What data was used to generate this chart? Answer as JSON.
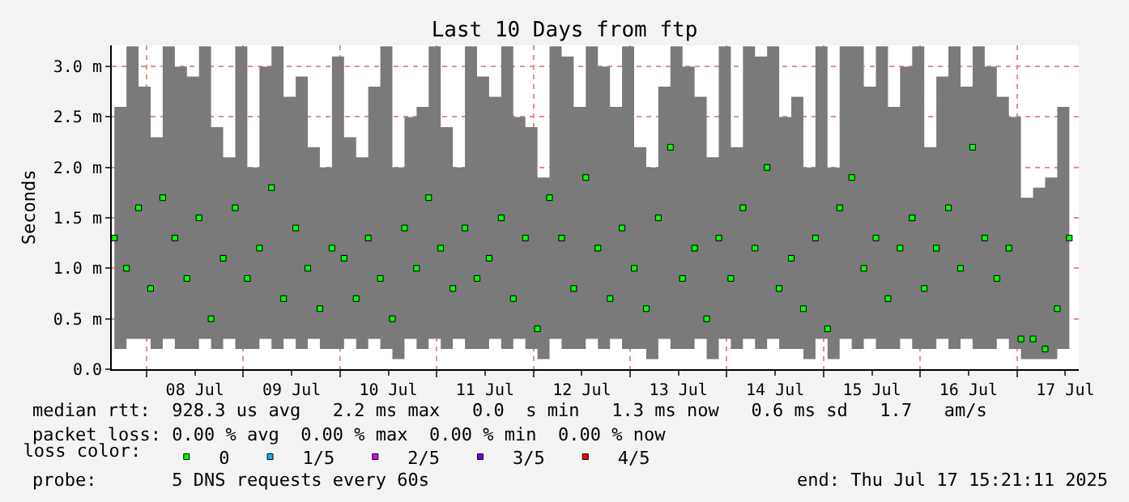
{
  "chart_data": {
    "type": "scatter",
    "title": "Last 10 Days from ftp",
    "ylabel": "Seconds",
    "legend_title": "loss color:",
    "x": [
      "2025-07-07T16:00",
      "2025-07-07T19:00",
      "2025-07-07T22:00",
      "2025-07-08T01:00",
      "2025-07-08T04:00",
      "2025-07-08T07:00",
      "2025-07-08T10:00",
      "2025-07-08T13:00",
      "2025-07-08T16:00",
      "2025-07-08T19:00",
      "2025-07-08T22:00",
      "2025-07-09T01:00",
      "2025-07-09T04:00",
      "2025-07-09T07:00",
      "2025-07-09T10:00",
      "2025-07-09T13:00",
      "2025-07-09T16:00",
      "2025-07-09T19:00",
      "2025-07-09T22:00",
      "2025-07-10T01:00",
      "2025-07-10T04:00",
      "2025-07-10T07:00",
      "2025-07-10T10:00",
      "2025-07-10T13:00",
      "2025-07-10T16:00",
      "2025-07-10T19:00",
      "2025-07-10T22:00",
      "2025-07-11T01:00",
      "2025-07-11T04:00",
      "2025-07-11T07:00",
      "2025-07-11T10:00",
      "2025-07-11T13:00",
      "2025-07-11T16:00",
      "2025-07-11T19:00",
      "2025-07-11T22:00",
      "2025-07-12T01:00",
      "2025-07-12T04:00",
      "2025-07-12T07:00",
      "2025-07-12T10:00",
      "2025-07-12T13:00",
      "2025-07-12T16:00",
      "2025-07-12T19:00",
      "2025-07-12T22:00",
      "2025-07-13T01:00",
      "2025-07-13T04:00",
      "2025-07-13T07:00",
      "2025-07-13T10:00",
      "2025-07-13T13:00",
      "2025-07-13T16:00",
      "2025-07-13T19:00",
      "2025-07-13T22:00",
      "2025-07-14T01:00",
      "2025-07-14T04:00",
      "2025-07-14T07:00",
      "2025-07-14T10:00",
      "2025-07-14T13:00",
      "2025-07-14T16:00",
      "2025-07-14T19:00",
      "2025-07-14T22:00",
      "2025-07-15T01:00",
      "2025-07-15T04:00",
      "2025-07-15T07:00",
      "2025-07-15T10:00",
      "2025-07-15T13:00",
      "2025-07-15T16:00",
      "2025-07-15T19:00",
      "2025-07-15T22:00",
      "2025-07-16T01:00",
      "2025-07-16T04:00",
      "2025-07-16T07:00",
      "2025-07-16T10:00",
      "2025-07-16T13:00",
      "2025-07-16T16:00",
      "2025-07-16T19:00",
      "2025-07-16T22:00",
      "2025-07-17T01:00",
      "2025-07-17T04:00",
      "2025-07-17T07:00",
      "2025-07-17T10:00",
      "2025-07-17T13:00"
    ],
    "series": [
      {
        "name": "0",
        "color": "#00ff00",
        "values": [
          1.3,
          1.0,
          1.6,
          0.8,
          1.7,
          1.3,
          0.9,
          1.5,
          0.5,
          1.1,
          1.6,
          0.9,
          1.2,
          1.8,
          0.7,
          1.4,
          1.0,
          0.6,
          1.2,
          1.1,
          0.7,
          1.3,
          0.9,
          0.5,
          1.4,
          1.0,
          1.7,
          1.2,
          0.8,
          1.4,
          0.9,
          1.1,
          1.5,
          0.7,
          1.3,
          0.4,
          1.7,
          1.3,
          0.8,
          1.9,
          1.2,
          0.7,
          1.4,
          1.0,
          0.6,
          1.5,
          2.2,
          0.9,
          1.2,
          0.5,
          1.3,
          0.9,
          1.6,
          1.2,
          2.0,
          0.8,
          1.1,
          0.6,
          1.3,
          0.4,
          1.6,
          1.9,
          1.0,
          1.3,
          0.7,
          1.2,
          1.5,
          0.8,
          1.2,
          1.6,
          1.0,
          2.2,
          1.3,
          0.9,
          1.2,
          0.3,
          0.3,
          0.2,
          0.6,
          1.3
        ],
        "lower": [
          0.2,
          0.3,
          0.3,
          0.2,
          0.3,
          0.2,
          0.2,
          0.3,
          0.2,
          0.3,
          0.2,
          0.2,
          0.3,
          0.2,
          0.3,
          0.2,
          0.3,
          0.2,
          0.2,
          0.3,
          0.2,
          0.3,
          0.2,
          0.1,
          0.3,
          0.2,
          0.3,
          0.2,
          0.3,
          0.2,
          0.2,
          0.3,
          0.2,
          0.3,
          0.2,
          0.1,
          0.3,
          0.2,
          0.2,
          0.3,
          0.2,
          0.3,
          0.2,
          0.2,
          0.1,
          0.3,
          0.2,
          0.2,
          0.3,
          0.1,
          0.3,
          0.2,
          0.3,
          0.2,
          0.3,
          0.2,
          0.2,
          0.1,
          0.3,
          0.1,
          0.3,
          0.2,
          0.3,
          0.2,
          0.2,
          0.3,
          0.2,
          0.2,
          0.3,
          0.2,
          0.3,
          0.2,
          0.2,
          0.3,
          0.2,
          0.1,
          0.1,
          0.1,
          0.2,
          0.3
        ],
        "upper": [
          2.6,
          3.2,
          2.8,
          2.3,
          3.2,
          3.0,
          2.9,
          3.2,
          2.4,
          2.1,
          3.2,
          2.0,
          3.0,
          3.2,
          2.7,
          2.9,
          2.2,
          2.0,
          3.1,
          2.3,
          2.1,
          2.8,
          3.2,
          2.0,
          2.5,
          2.6,
          3.2,
          2.4,
          2.0,
          3.2,
          2.9,
          2.7,
          3.2,
          2.5,
          2.4,
          1.9,
          3.2,
          3.1,
          2.6,
          3.2,
          3.0,
          2.6,
          3.2,
          2.2,
          2.0,
          2.8,
          3.2,
          3.0,
          2.7,
          2.1,
          3.2,
          2.2,
          3.2,
          3.1,
          3.2,
          2.5,
          2.7,
          2.0,
          3.2,
          2.0,
          3.2,
          3.2,
          2.8,
          3.2,
          2.6,
          3.0,
          3.2,
          2.2,
          2.9,
          3.2,
          2.8,
          3.2,
          3.0,
          2.7,
          2.5,
          1.7,
          1.8,
          1.9,
          2.6,
          3.1
        ]
      },
      {
        "name": "1/5",
        "color": "#00b8ff",
        "values": [
          null,
          null,
          null,
          null,
          null,
          null,
          null,
          null,
          null,
          null,
          null,
          null,
          null,
          null,
          null,
          null,
          null,
          null,
          null,
          null,
          null,
          null,
          null,
          null,
          null,
          null,
          null,
          null,
          null,
          null,
          null,
          null,
          null,
          null,
          null,
          null,
          null,
          null,
          null,
          null,
          null,
          null,
          null,
          null,
          null,
          null,
          null,
          null,
          null,
          null,
          null,
          null,
          null,
          null,
          null,
          null,
          null,
          null,
          null,
          null,
          null,
          null,
          null,
          null,
          null,
          null,
          null,
          null,
          null,
          null,
          null,
          null,
          null,
          null,
          null,
          null,
          null,
          null,
          null,
          null
        ]
      },
      {
        "name": "2/5",
        "color": "#e000ff",
        "values": [
          null,
          null,
          null,
          null,
          null,
          null,
          null,
          null,
          null,
          null,
          null,
          null,
          null,
          null,
          null,
          null,
          null,
          null,
          null,
          null,
          null,
          null,
          null,
          null,
          null,
          null,
          null,
          null,
          null,
          null,
          null,
          null,
          null,
          null,
          null,
          null,
          null,
          null,
          null,
          null,
          null,
          null,
          null,
          null,
          null,
          null,
          null,
          null,
          null,
          null,
          null,
          null,
          null,
          null,
          null,
          null,
          null,
          null,
          null,
          null,
          null,
          null,
          null,
          null,
          null,
          null,
          null,
          null,
          null,
          null,
          null,
          null,
          null,
          null,
          null,
          null,
          null,
          null,
          null,
          null
        ]
      },
      {
        "name": "3/5",
        "color": "#6a00ff",
        "values": [
          null,
          null,
          null,
          null,
          null,
          null,
          null,
          null,
          null,
          null,
          null,
          null,
          null,
          null,
          null,
          null,
          null,
          null,
          null,
          null,
          null,
          null,
          null,
          null,
          null,
          null,
          null,
          null,
          null,
          null,
          null,
          null,
          null,
          null,
          null,
          null,
          null,
          null,
          null,
          null,
          null,
          null,
          null,
          null,
          null,
          null,
          null,
          null,
          null,
          null,
          null,
          null,
          null,
          null,
          null,
          null,
          null,
          null,
          null,
          null,
          null,
          null,
          null,
          null,
          null,
          null,
          null,
          null,
          null,
          null,
          null,
          null,
          null,
          null,
          null,
          null,
          null,
          null,
          null,
          null
        ]
      },
      {
        "name": "4/5",
        "color": "#ff0000",
        "values": [
          null,
          null,
          null,
          null,
          null,
          null,
          null,
          null,
          null,
          null,
          null,
          null,
          null,
          null,
          null,
          null,
          null,
          null,
          null,
          null,
          null,
          null,
          null,
          null,
          null,
          null,
          null,
          null,
          null,
          null,
          null,
          null,
          null,
          null,
          null,
          null,
          null,
          null,
          null,
          null,
          null,
          null,
          null,
          null,
          null,
          null,
          null,
          null,
          null,
          null,
          null,
          null,
          null,
          null,
          null,
          null,
          null,
          null,
          null,
          null,
          null,
          null,
          null,
          null,
          null,
          null,
          null,
          null,
          null,
          null,
          null,
          null,
          null,
          null,
          null,
          null,
          null,
          null,
          null,
          null
        ]
      }
    ],
    "xlim": [
      "2025-07-07T15:21",
      "2025-07-17T15:21"
    ],
    "xticks": [
      {
        "value": "2025-07-08",
        "label": null
      },
      {
        "value": "2025-07-08T12:00",
        "label": "08 Jul"
      },
      {
        "value": "2025-07-09",
        "label": null
      },
      {
        "value": "2025-07-09T12:00",
        "label": "09 Jul"
      },
      {
        "value": "2025-07-10",
        "label": null
      },
      {
        "value": "2025-07-10T12:00",
        "label": "10 Jul"
      },
      {
        "value": "2025-07-11",
        "label": null
      },
      {
        "value": "2025-07-11T12:00",
        "label": "11 Jul"
      },
      {
        "value": "2025-07-12",
        "label": null
      },
      {
        "value": "2025-07-12T12:00",
        "label": "12 Jul"
      },
      {
        "value": "2025-07-13",
        "label": null
      },
      {
        "value": "2025-07-13T12:00",
        "label": "13 Jul"
      },
      {
        "value": "2025-07-14",
        "label": null
      },
      {
        "value": "2025-07-14T12:00",
        "label": "14 Jul"
      },
      {
        "value": "2025-07-15",
        "label": null
      },
      {
        "value": "2025-07-15T12:00",
        "label": "15 Jul"
      },
      {
        "value": "2025-07-16",
        "label": null
      },
      {
        "value": "2025-07-16T12:00",
        "label": "16 Jul"
      },
      {
        "value": "2025-07-17",
        "label": null
      },
      {
        "value": "2025-07-17T12:00",
        "label": "17 Jul"
      }
    ],
    "ylim": [
      0,
      3.21
    ],
    "yticks": [
      {
        "value": 0,
        "label": "0.0"
      },
      {
        "value": 0.5,
        "label": "0.5 m"
      },
      {
        "value": 1.0,
        "label": "1.0 m"
      },
      {
        "value": 1.5,
        "label": "1.5 m"
      },
      {
        "value": 2.0,
        "label": "2.0 m"
      },
      {
        "value": 2.5,
        "label": "2.5 m"
      },
      {
        "value": 3.0,
        "label": "3.0 m"
      }
    ],
    "grid": true,
    "legend": "bottom",
    "marker": "square",
    "annotations": [
      "median rtt:  928.3 us avg   2.2 ms max   0.0  s min   1.3 ms now   0.6 ms sd   1.7   am/s",
      "packet loss: 0.00 % avg  0.00 % max  0.00 % min  0.00 % now",
      "probe:       5 DNS requests every 60s",
      "end: Thu Jul 17 15:21:11 2025"
    ]
  }
}
